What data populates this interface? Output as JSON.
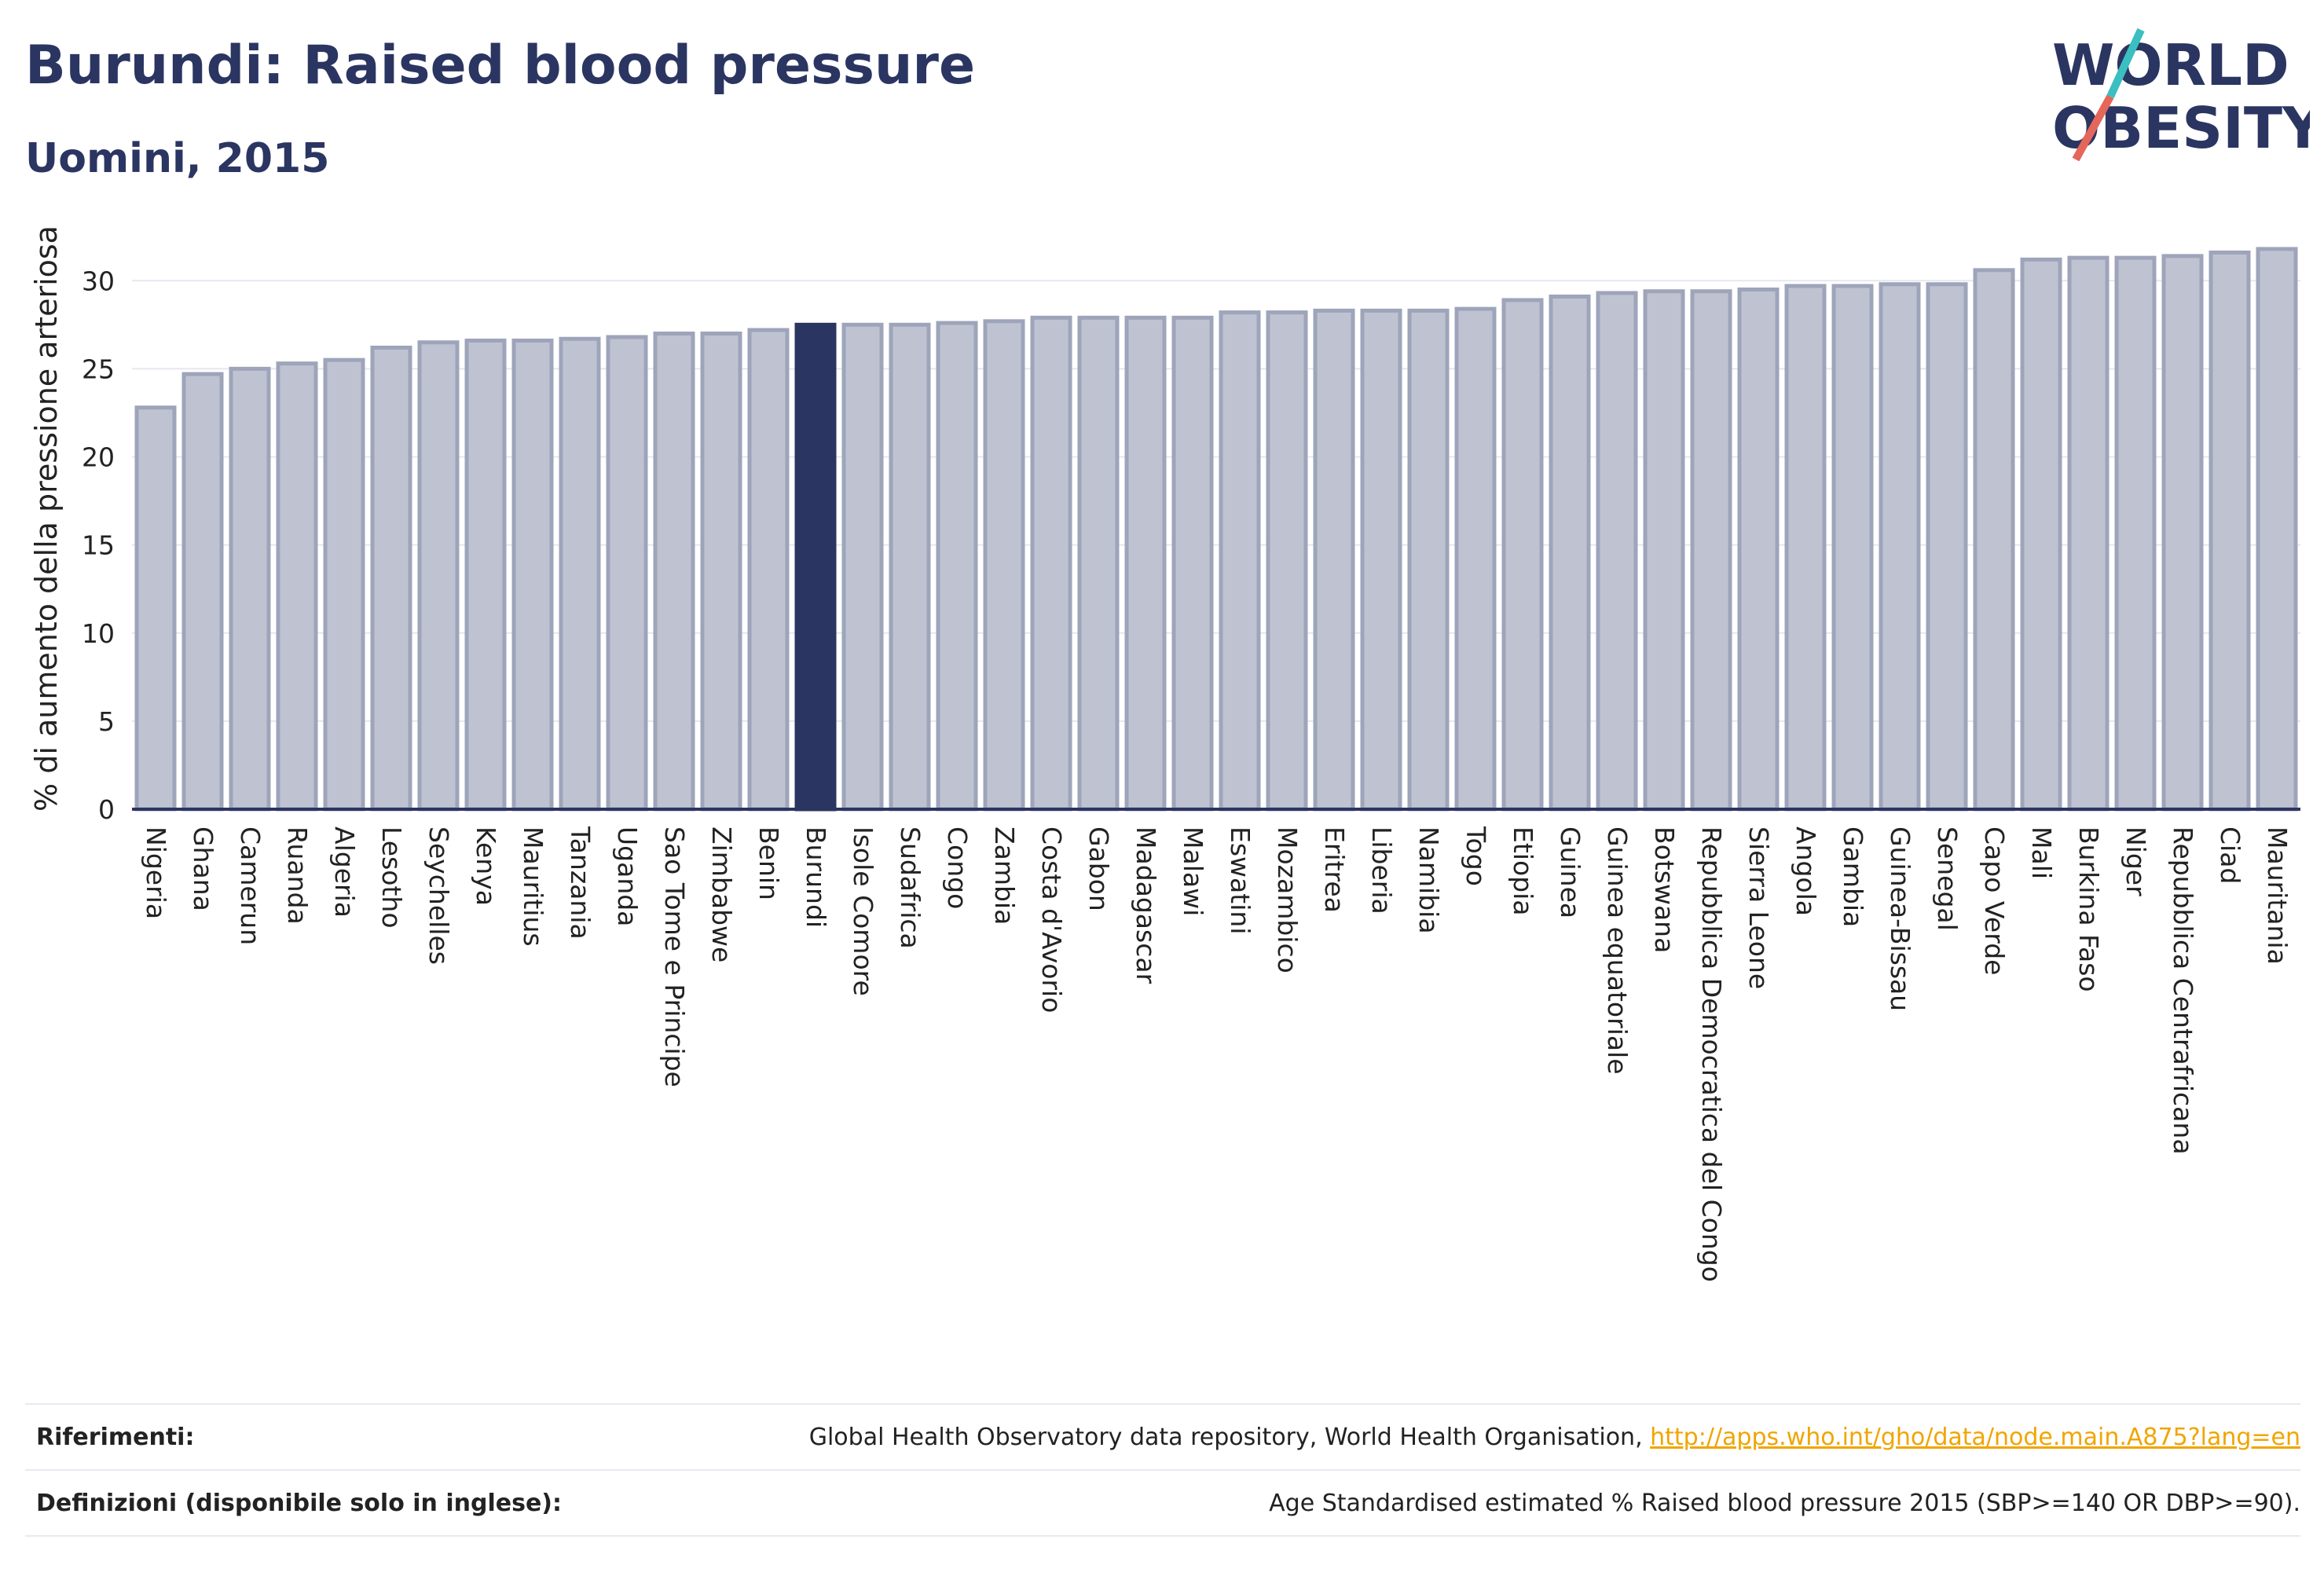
{
  "header": {
    "title": "Burundi: Raised blood pressure",
    "subtitle": "Uomini, 2015"
  },
  "logo": {
    "line1": "WORLD",
    "line2": "OBESITY",
    "icon": "world-obesity-logo"
  },
  "chart_data": {
    "type": "bar",
    "ylabel": "% di aumento della pressione arteriosa",
    "ylim": [
      0,
      33
    ],
    "yticks": [
      0,
      5,
      10,
      15,
      20,
      25,
      30
    ],
    "grid": true,
    "highlight": "Burundi",
    "categories": [
      "Nigeria",
      "Ghana",
      "Camerun",
      "Ruanda",
      "Algeria",
      "Lesotho",
      "Seychelles",
      "Kenya",
      "Mauritius",
      "Tanzania",
      "Uganda",
      "Sao Tome e Principe",
      "Zimbabwe",
      "Benin",
      "Burundi",
      "Isole Comore",
      "Sudafrica",
      "Congo",
      "Zambia",
      "Costa d'Avorio",
      "Gabon",
      "Madagascar",
      "Malawi",
      "Eswatini",
      "Mozambico",
      "Eritrea",
      "Liberia",
      "Namibia",
      "Togo",
      "Etiopia",
      "Guinea",
      "Guinea equatoriale",
      "Botswana",
      "Repubblica Democratica del Congo",
      "Sierra Leone",
      "Angola",
      "Gambia",
      "Guinea-Bissau",
      "Senegal",
      "Capo Verde",
      "Mali",
      "Burkina Faso",
      "Niger",
      "Repubblica Centrafricana",
      "Ciad",
      "Mauritania"
    ],
    "values": [
      22.8,
      24.7,
      25.0,
      25.3,
      25.5,
      26.2,
      26.5,
      26.6,
      26.6,
      26.7,
      26.8,
      27.0,
      27.0,
      27.2,
      27.5,
      27.5,
      27.5,
      27.6,
      27.7,
      27.9,
      27.9,
      27.9,
      27.9,
      28.2,
      28.2,
      28.3,
      28.3,
      28.3,
      28.4,
      28.9,
      29.1,
      29.3,
      29.4,
      29.4,
      29.5,
      29.7,
      29.7,
      29.8,
      29.8,
      30.6,
      31.2,
      31.3,
      31.3,
      31.4,
      31.6,
      31.8
    ]
  },
  "colors": {
    "bar": "#bfc3d1",
    "bar_border": "#9ea4ba",
    "highlight": "#2b3561",
    "axis": "#2b3561",
    "grid": "#e6e8ef",
    "link": "#f0a500"
  },
  "footer": {
    "references_label": "Riferimenti:",
    "references_text": "Global Health Observatory data repository, World Health Organisation, ",
    "references_link": "http://apps.who.int/gho/data/node.main.A875?lang=en",
    "definitions_label": "Definizioni (disponibile solo in inglese):",
    "definitions_text": "Age Standardised estimated % Raised blood pressure 2015 (SBP>=140 OR DBP>=90)."
  }
}
